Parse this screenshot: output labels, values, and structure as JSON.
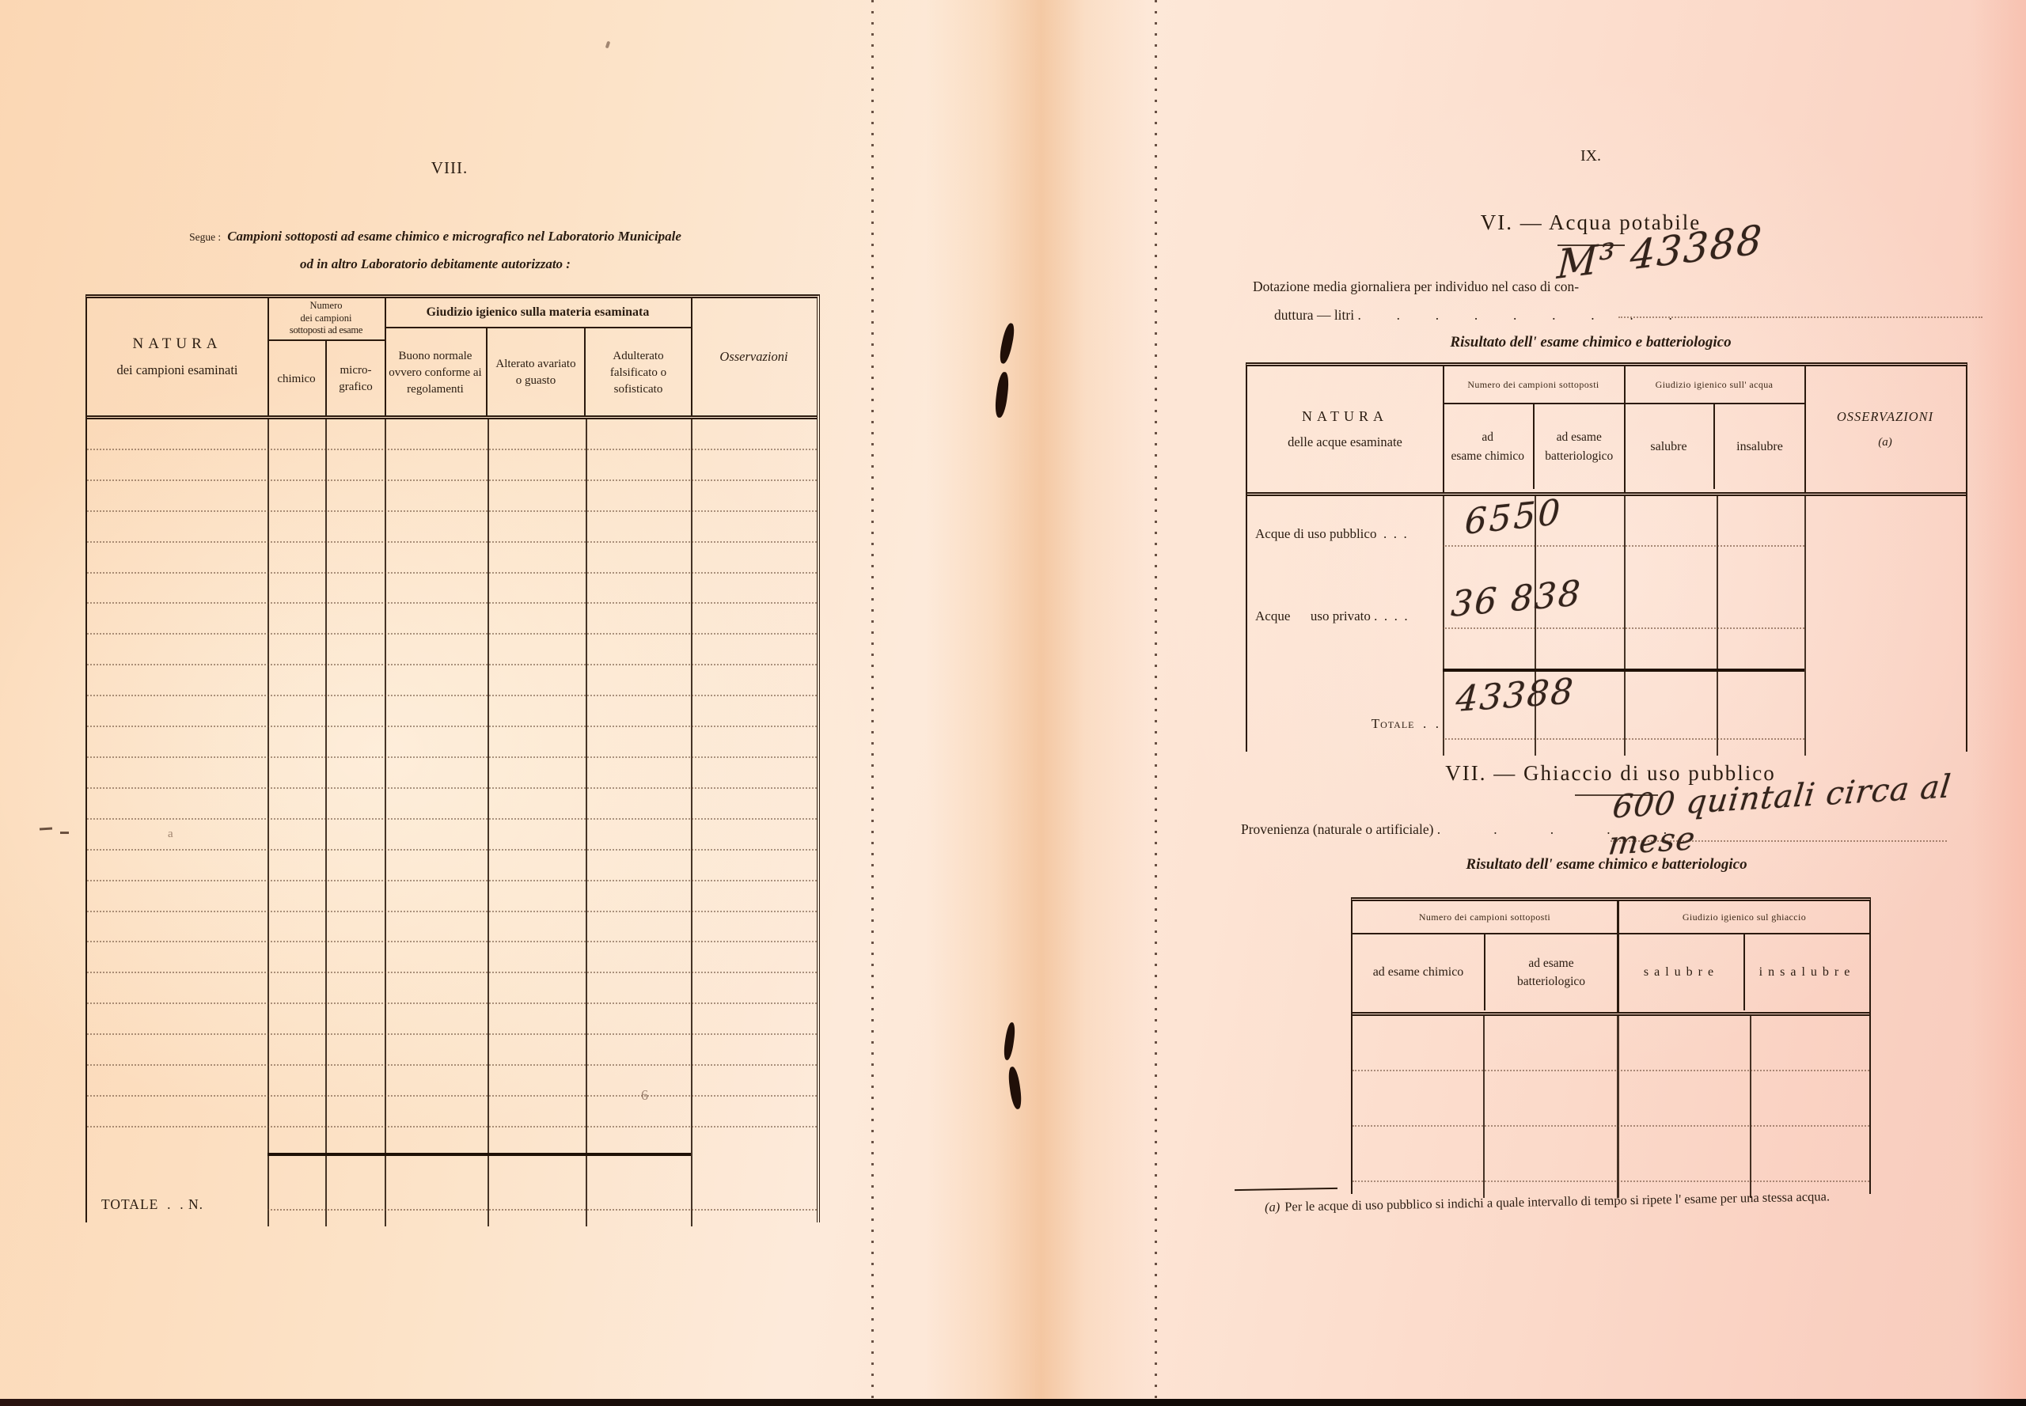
{
  "left": {
    "page_number": "VIII.",
    "segue": "Segue :",
    "intro_bold": "Campioni sottoposti ad esame chimico e micrografico nel Laboratorio Municipale",
    "intro_line2": "od in altro Laboratorio debitamente autorizzato :",
    "table": {
      "natura_title": "NATURA",
      "natura_sub": "dei campioni esaminati",
      "numero_l1": "Numero",
      "numero_l2": "dei campioni",
      "numero_l3": "sottoposti ad esame",
      "chimico": "chimico",
      "micro_l1": "micro-",
      "micro_l2": "grafico",
      "giudizio_group": "Giudizio igienico sulla materia esaminata",
      "buono": "Buono normale ovvero conforme ai regolamenti",
      "alterato": "Alterato avariato o guasto",
      "adulterato": "Adulterato falsificato o sofisticato",
      "osservazioni": "Osservazioni",
      "totale_label": "TOTALE  .  . N."
    }
  },
  "right": {
    "page_number": "IX.",
    "acqua": {
      "title": "VI. — Acqua potabile",
      "dotazione_l1": "Dotazione media giornaliera per individuo nel caso di con-",
      "dotazione_l2": "duttura — litri",
      "leader_dots": ".  .  .  .  .  .  .  .  .",
      "handwritten_value": "M³ 43388",
      "subtitle": "Risultato dell' esame chimico e batteriologico",
      "table": {
        "natura_title": "NATURA",
        "natura_sub": "delle acque esaminate",
        "numero_group": "Numero dei campioni sottoposti",
        "chimico_l1": "ad",
        "chimico_l2": "esame chimico",
        "batteriologico_l1": "ad esame",
        "batteriologico_l2": "batteriologico",
        "giudizio_group": "Giudizio igienico sull' acqua",
        "salubre": "salubre",
        "insalubre": "insalubre",
        "osservazioni_l1": "OSSERVAZIONI",
        "osservazioni_l2": "(a)",
        "rows": [
          {
            "label": "Acque di uso pubblico  .  .  .",
            "value": "6550"
          },
          {
            "label": "Acque      uso privato .  .  .  .",
            "value": "36 838"
          }
        ],
        "totale_label": "Totale  .  .",
        "totale_value": "43388"
      }
    },
    "ghiaccio": {
      "title": "VII. — Ghiaccio di uso pubblico",
      "provenienza_label": "Provenienza (naturale o artificiale)",
      "leader_dots": ".   .   .   .   .",
      "handwritten_value": "600 quintali circa al mese",
      "subtitle": "Risultato dell' esame chimico e batteriologico",
      "table": {
        "numero_group": "Numero dei campioni sottoposti",
        "chimico": "ad esame chimico",
        "batteriologico_l1": "ad esame",
        "batteriologico_l2": "batteriologico",
        "giudizio_group": "Giudizio igienico sul ghiaccio",
        "salubre": "salubre",
        "insalubre": "insalubre"
      }
    },
    "footnote_marker": "(a)",
    "footnote_text": "Per le acque di uso pubblico si indichi a quale intervallo di tempo si ripete l' esame per una stessa acqua."
  },
  "artifacts": {
    "stray_letter": "a",
    "stray_numeral": "6"
  }
}
